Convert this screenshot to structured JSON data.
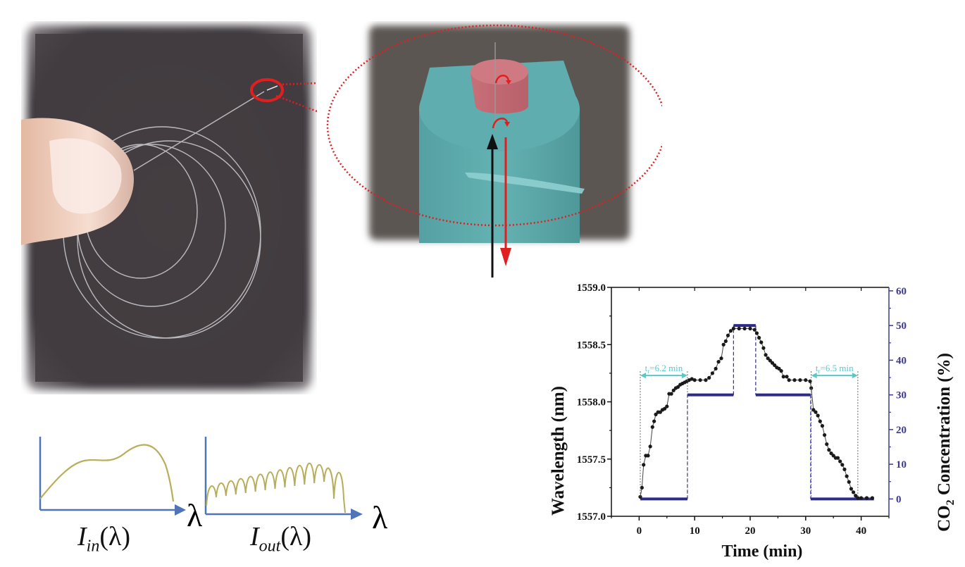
{
  "figure": {
    "photo_panel": {
      "description": "hand holding coiled optical fiber on dark textured background",
      "highlight_color": "#e02020"
    },
    "sem_panel": {
      "description": "false-colored SEM image of fiber tip with polymer cap",
      "fiber_color": "#5aa7a8",
      "cap_color": "#c46a72",
      "zoom_ellipse_color": "#e02020",
      "input_arrow_color": "#111111",
      "output_arrow_color": "#e02020"
    },
    "spectra": {
      "input_label_main": "I",
      "input_label_sub": "in",
      "input_label_arg": "(λ)",
      "output_label_main": "I",
      "output_label_sub": "out",
      "output_label_arg": "(λ)",
      "axis_symbol": "λ",
      "axis_color": "#4f74b8",
      "curve_color": "#b8ae5a"
    }
  },
  "chart_data": {
    "type": "line",
    "title": "",
    "xlabel": "Time (min)",
    "ylabel": "Wavelength (nm)",
    "y2label_prefix": "CO",
    "y2label_sub": "2",
    "y2label_suffix": " Concentration (%)",
    "xlim": [
      -5,
      45
    ],
    "ylim": [
      1557.0,
      1559.0
    ],
    "y2lim": [
      -5,
      61
    ],
    "x_ticks": [
      0,
      10,
      20,
      30,
      40
    ],
    "y_ticks": [
      "1557.0",
      "1557.5",
      "1558.0",
      "1558.5",
      "1559.0"
    ],
    "y2_ticks": [
      0,
      10,
      20,
      30,
      40,
      50,
      60
    ],
    "grid": false,
    "legend": "none",
    "colors": {
      "wavelength": "#1a1a1a",
      "co2": "#2e2a8c",
      "annotation": "#5cc6c8",
      "axis2": "#3d3a8c"
    },
    "series": [
      {
        "name": "Wavelength",
        "axis": "left",
        "style": "line+markers",
        "x": [
          0.2,
          0.5,
          0.8,
          1.2,
          1.6,
          2.0,
          2.4,
          2.7,
          3.0,
          3.4,
          3.8,
          4.2,
          4.6,
          5.0,
          5.4,
          5.8,
          6.2,
          6.6,
          7.0,
          7.4,
          7.8,
          8.2,
          8.6,
          9.0,
          9.5,
          10,
          11,
          12,
          12.6,
          13.2,
          13.8,
          14.3,
          14.8,
          15.2,
          15.6,
          16.0,
          16.5,
          17,
          18,
          19,
          20,
          20.8,
          21.2,
          21.6,
          22.0,
          22.4,
          22.8,
          23.2,
          23.6,
          24.0,
          24.4,
          24.8,
          25.2,
          25.6,
          26.0,
          26.6,
          27,
          28,
          29,
          30,
          30.8,
          31.0,
          31.4,
          31.8,
          32.2,
          32.6,
          33.0,
          33.4,
          33.8,
          34.2,
          34.6,
          35.0,
          35.4,
          35.8,
          36.2,
          36.6,
          37.0,
          37.4,
          37.8,
          38.2,
          38.6,
          39.0,
          39.4,
          40,
          41,
          42
        ],
        "values": [
          1557.17,
          1557.25,
          1557.45,
          1557.53,
          1557.53,
          1557.61,
          1557.78,
          1557.83,
          1557.89,
          1557.91,
          1557.91,
          1557.93,
          1557.94,
          1557.96,
          1558.07,
          1558.07,
          1558.1,
          1558.12,
          1558.13,
          1558.15,
          1558.16,
          1558.17,
          1558.18,
          1558.19,
          1558.2,
          1558.19,
          1558.19,
          1558.19,
          1558.21,
          1558.25,
          1558.29,
          1558.35,
          1558.38,
          1558.5,
          1558.53,
          1558.58,
          1558.62,
          1558.64,
          1558.64,
          1558.64,
          1558.64,
          1558.63,
          1558.6,
          1558.56,
          1558.52,
          1558.47,
          1558.41,
          1558.38,
          1558.36,
          1558.34,
          1558.32,
          1558.3,
          1558.29,
          1558.27,
          1558.22,
          1558.22,
          1558.19,
          1558.19,
          1558.19,
          1558.19,
          1558.18,
          1558.12,
          1557.93,
          1557.91,
          1557.88,
          1557.83,
          1557.79,
          1557.71,
          1557.63,
          1557.58,
          1557.55,
          1557.53,
          1557.51,
          1557.51,
          1557.48,
          1557.45,
          1557.41,
          1557.35,
          1557.3,
          1557.24,
          1557.21,
          1557.18,
          1557.16,
          1557.16,
          1557.16,
          1557.16
        ]
      },
      {
        "name": "CO2 Concentration",
        "axis": "right",
        "style": "step",
        "segments": [
          {
            "x0": 0.2,
            "x1": 8.7,
            "value": 0
          },
          {
            "x0": 8.7,
            "x1": 17.0,
            "value": 30
          },
          {
            "x0": 17.0,
            "x1": 21.0,
            "value": 50
          },
          {
            "x0": 21.0,
            "x1": 30.9,
            "value": 30
          },
          {
            "x0": 30.9,
            "x1": 42.3,
            "value": 0
          }
        ]
      }
    ],
    "annotations": [
      {
        "text_main": "t",
        "text_sub": "r",
        "text_rest": "=6.2 min",
        "x_start": 0.2,
        "x_end": 8.7,
        "y": 1558.23
      },
      {
        "text_main": "t",
        "text_sub": "r",
        "text_rest": "=6.5 min",
        "x_start": 31.0,
        "x_end": 39.4,
        "y": 1558.23
      }
    ]
  }
}
